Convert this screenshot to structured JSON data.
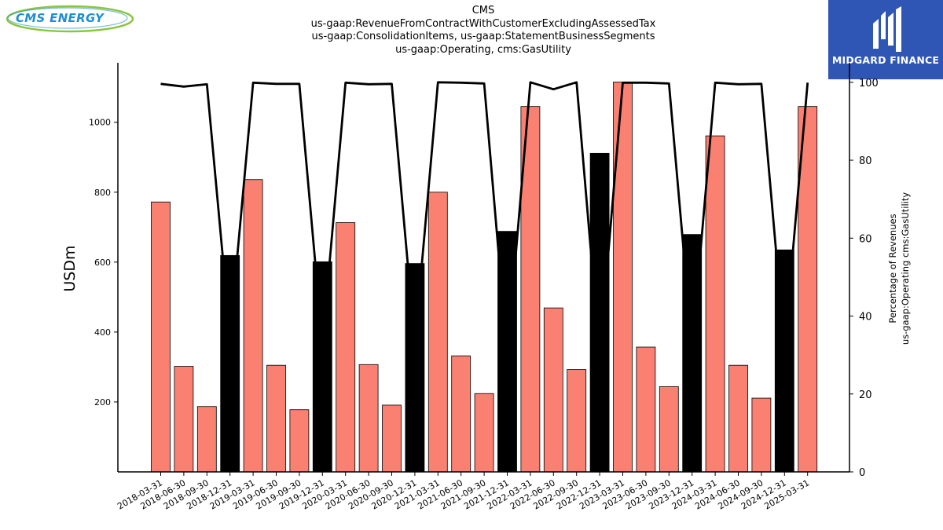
{
  "logos": {
    "left": "CMS ENERGY",
    "right": "MIDGARD FINANCE"
  },
  "title_lines": [
    "CMS",
    "us-gaap:RevenueFromContractWithCustomerExcludingAssessedTax",
    "us-gaap:ConsolidationItems, us-gaap:StatementBusinessSegments",
    "us-gaap:Operating, cms:GasUtility"
  ],
  "colors": {
    "bar_default": "#fa8072",
    "bar_highlight": "#000000",
    "line": "#000000",
    "midgard_bg": "#2f56b5",
    "cms_blue": "#1d8fd1",
    "cms_green": "#8cc63f"
  },
  "chart_data": {
    "type": "bar",
    "title": "CMS",
    "ylabel": "USDm",
    "y2label": [
      "Percentage of Revenues",
      "us-gaap:Operating cms:GasUtility"
    ],
    "ylim": [
      0,
      1170
    ],
    "y2lim": [
      0,
      105
    ],
    "yticks": [
      200,
      400,
      600,
      800,
      1000
    ],
    "y2ticks": [
      0,
      20,
      40,
      60,
      80,
      100
    ],
    "categories": [
      "2018-03-31",
      "2018-06-30",
      "2018-09-30",
      "2018-12-31",
      "2019-03-31",
      "2019-06-30",
      "2019-09-30",
      "2019-12-31",
      "2020-03-31",
      "2020-06-30",
      "2020-09-30",
      "2020-12-31",
      "2021-03-31",
      "2021-06-30",
      "2021-09-30",
      "2021-12-31",
      "2022-03-31",
      "2022-06-30",
      "2022-09-30",
      "2022-12-31",
      "2023-03-31",
      "2023-06-30",
      "2023-09-30",
      "2023-12-31",
      "2024-03-31",
      "2024-06-30",
      "2024-09-30",
      "2024-12-31",
      "2025-03-31"
    ],
    "series": [
      {
        "kind": "bar",
        "values": [
          772,
          302,
          187,
          619,
          836,
          305,
          178,
          601,
          713,
          307,
          191,
          596,
          800,
          332,
          224,
          688,
          1045,
          469,
          293,
          911,
          1115,
          357,
          244,
          679,
          961,
          305,
          211,
          635,
          1045
        ],
        "highlight": [
          false,
          false,
          false,
          true,
          false,
          false,
          false,
          true,
          false,
          false,
          false,
          true,
          false,
          false,
          false,
          true,
          false,
          false,
          false,
          true,
          false,
          false,
          false,
          true,
          false,
          false,
          false,
          true,
          false
        ]
      },
      {
        "kind": "line",
        "axis": "right",
        "values": [
          99.6,
          98.9,
          99.5,
          35.0,
          99.9,
          99.6,
          99.6,
          33.0,
          99.9,
          99.5,
          99.6,
          33.0,
          100.0,
          99.9,
          99.7,
          30.0,
          100.0,
          98.2,
          100.0,
          30.0,
          99.9,
          99.9,
          99.7,
          32.0,
          99.9,
          99.5,
          99.6,
          32.0,
          99.9
        ]
      }
    ]
  }
}
